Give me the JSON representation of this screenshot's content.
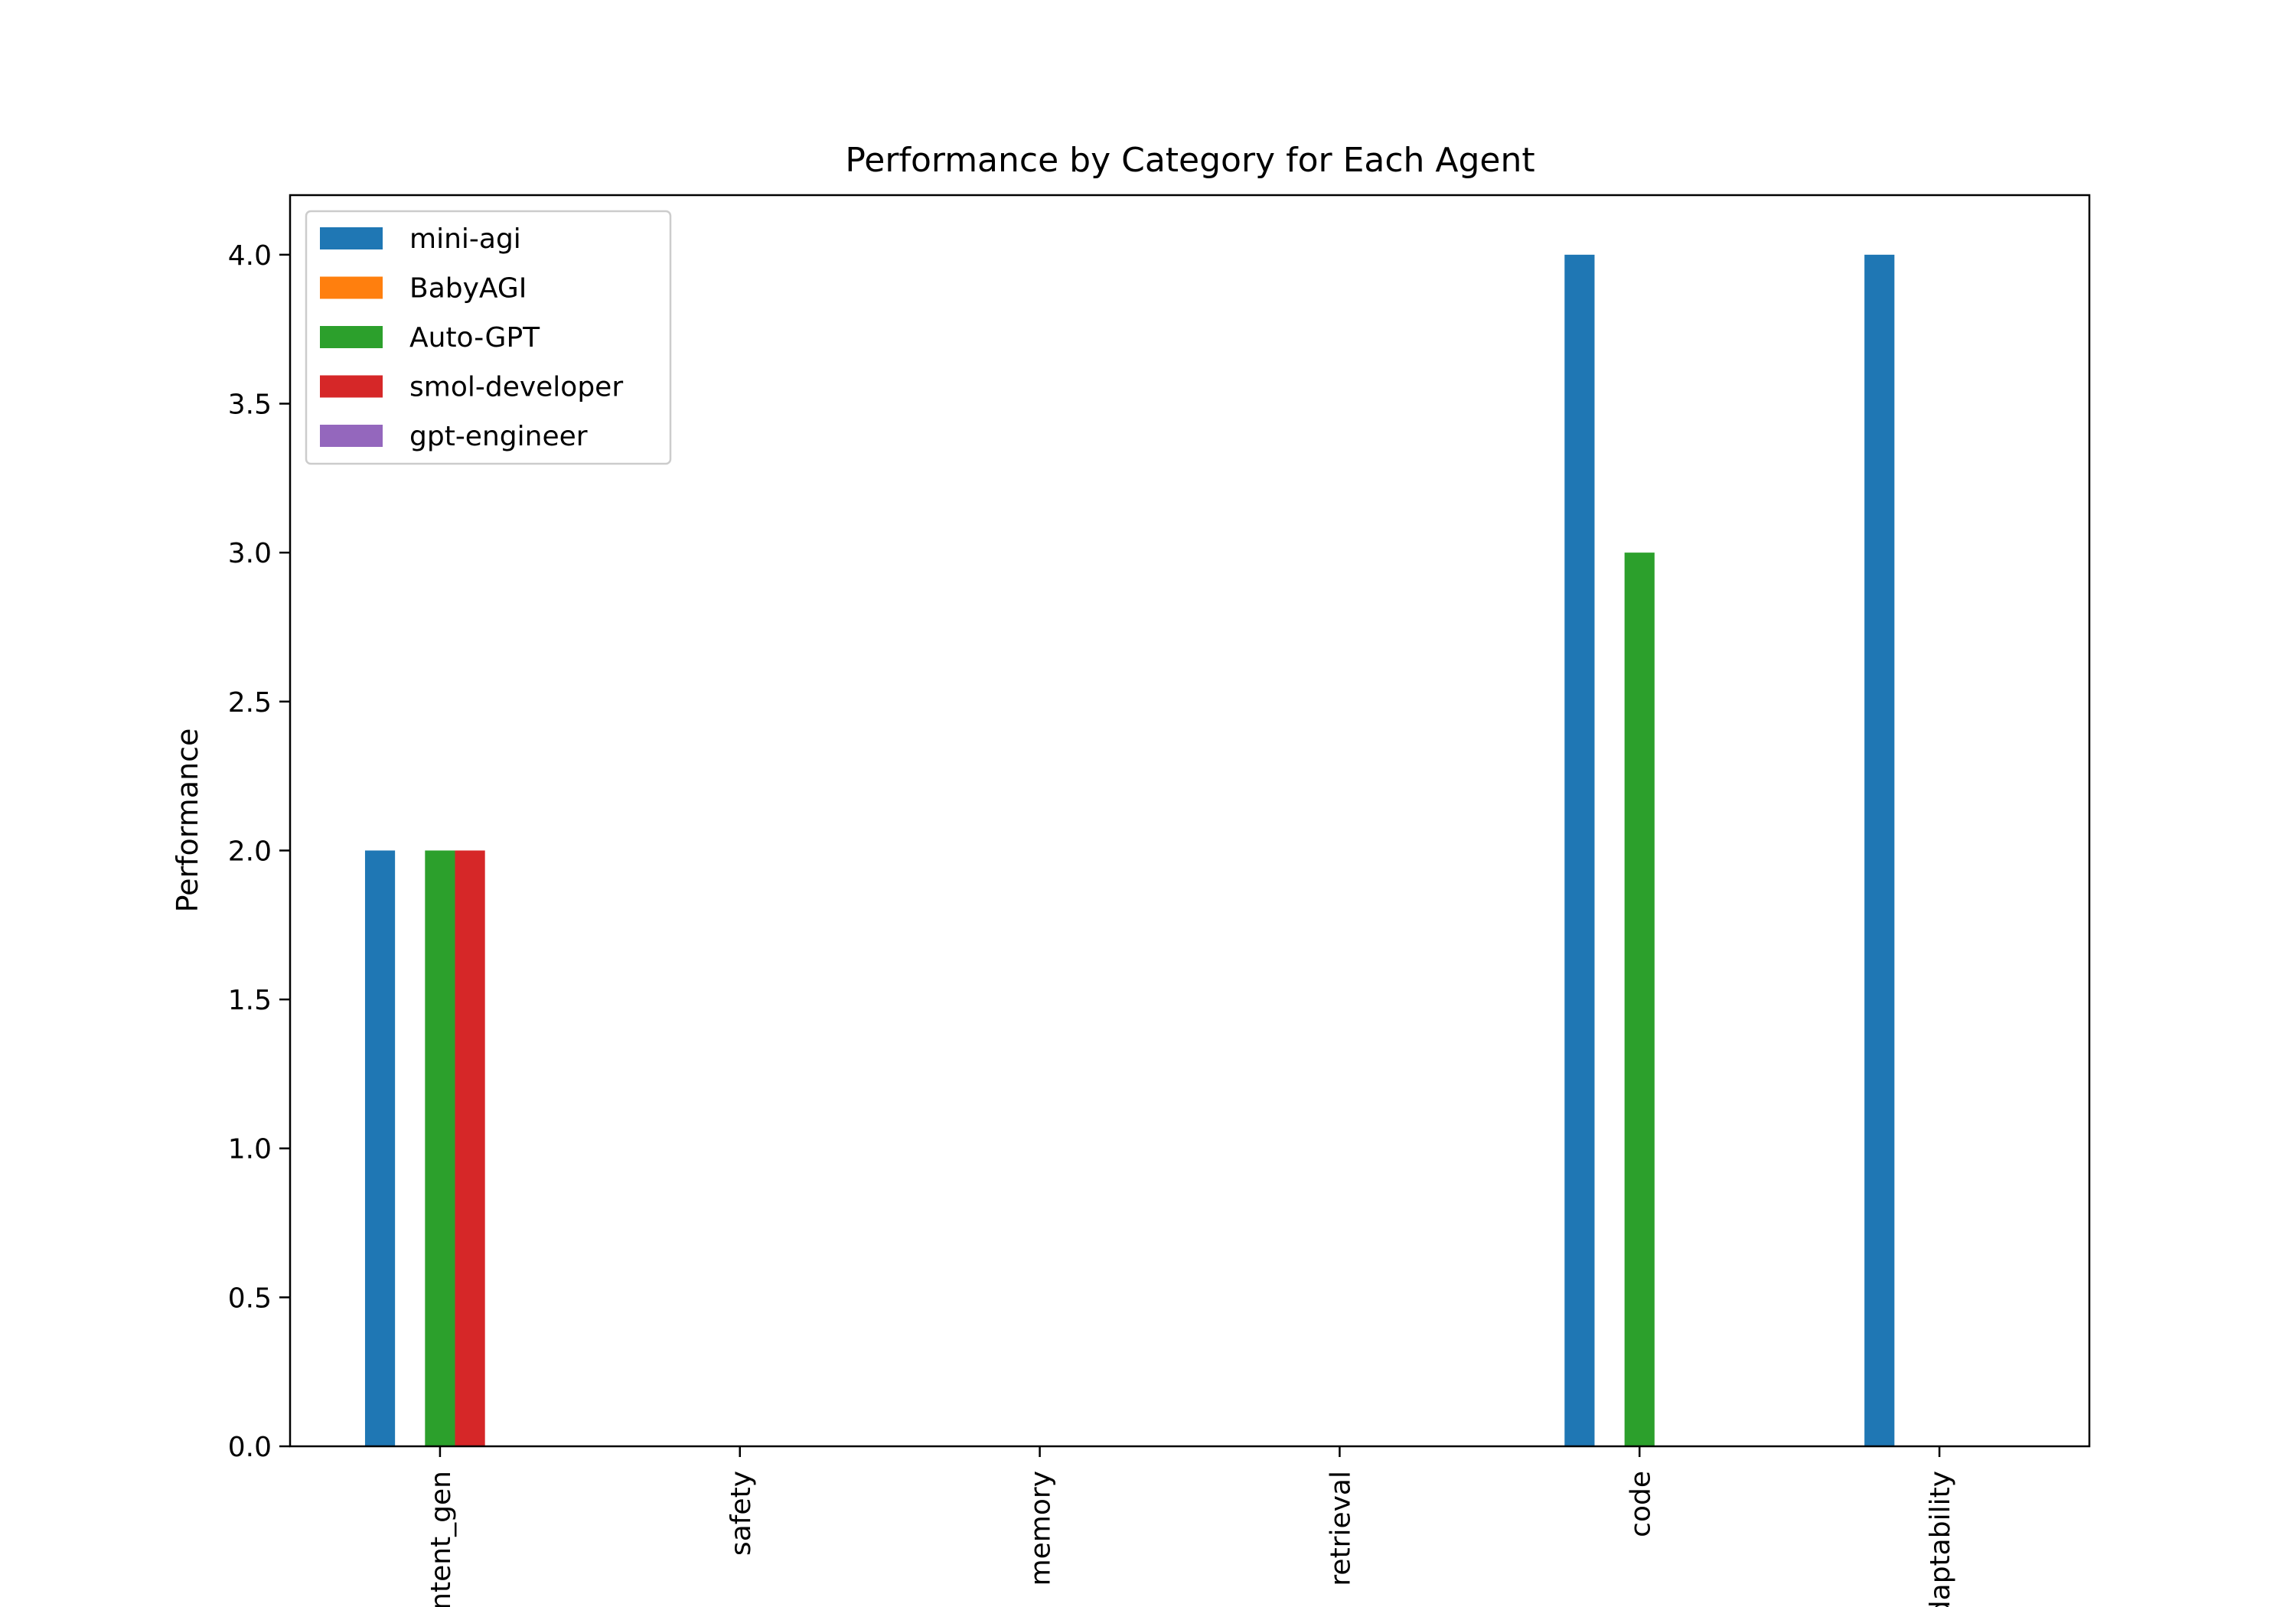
{
  "chart_data": {
    "type": "bar",
    "title": "Performance by Category for Each Agent",
    "xlabel": "",
    "ylabel": "Performance",
    "categories": [
      "content_gen",
      "safety",
      "memory",
      "retrieval",
      "code",
      "adaptability"
    ],
    "series": [
      {
        "name": "mini-agi",
        "color": "#1f77b4",
        "values": [
          2,
          0,
          0,
          0,
          4,
          4
        ]
      },
      {
        "name": "BabyAGI",
        "color": "#ff7f0e",
        "values": [
          0,
          0,
          0,
          0,
          0,
          0
        ]
      },
      {
        "name": "Auto-GPT",
        "color": "#2ca02c",
        "values": [
          2,
          0,
          0,
          0,
          3,
          0
        ]
      },
      {
        "name": "smol-developer",
        "color": "#d62728",
        "values": [
          2,
          0,
          0,
          0,
          0,
          0
        ]
      },
      {
        "name": "gpt-engineer",
        "color": "#9467bd",
        "values": [
          0,
          0,
          0,
          0,
          0,
          0
        ]
      }
    ],
    "ylim": [
      0,
      4.2
    ],
    "yticks": [
      "0.0",
      "0.5",
      "1.0",
      "1.5",
      "2.0",
      "2.5",
      "3.0",
      "3.5",
      "4.0"
    ],
    "grid": false,
    "legend_position": "top-left"
  }
}
